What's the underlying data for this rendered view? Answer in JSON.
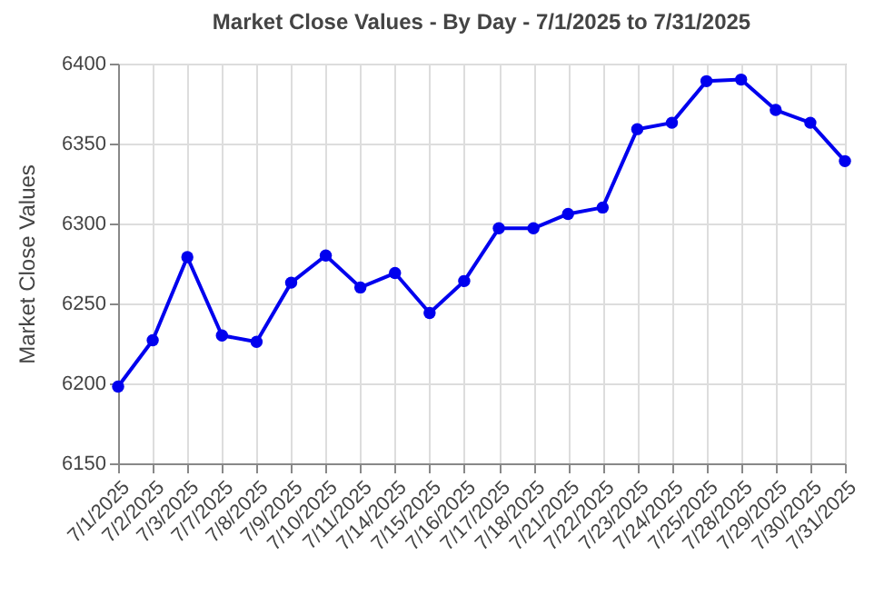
{
  "chart_data": {
    "type": "line",
    "title": "Market Close Values - By Day - 7/1/2025 to 7/31/2025",
    "ylabel": "Market Close Values",
    "categories": [
      "7/1/2025",
      "7/2/2025",
      "7/3/2025",
      "7/7/2025",
      "7/8/2025",
      "7/9/2025",
      "7/10/2025",
      "7/11/2025",
      "7/14/2025",
      "7/15/2025",
      "7/16/2025",
      "7/17/2025",
      "7/18/2025",
      "7/21/2025",
      "7/22/2025",
      "7/23/2025",
      "7/24/2025",
      "7/25/2025",
      "7/28/2025",
      "7/29/2025",
      "7/30/2025",
      "7/31/2025"
    ],
    "series": [
      {
        "color": "#0000ee",
        "values": [
          6198,
          6227,
          6279,
          6230,
          6226,
          6263,
          6280,
          6260,
          6269,
          6244,
          6264,
          6297,
          6297,
          6306,
          6310,
          6359,
          6363,
          6389,
          6390,
          6371,
          6363,
          6339
        ]
      }
    ],
    "ylim": [
      6150,
      6400
    ],
    "yticks": [
      6150,
      6200,
      6250,
      6300,
      6350,
      6400
    ],
    "grid": true,
    "marker": "circle",
    "line_style": "solid"
  }
}
